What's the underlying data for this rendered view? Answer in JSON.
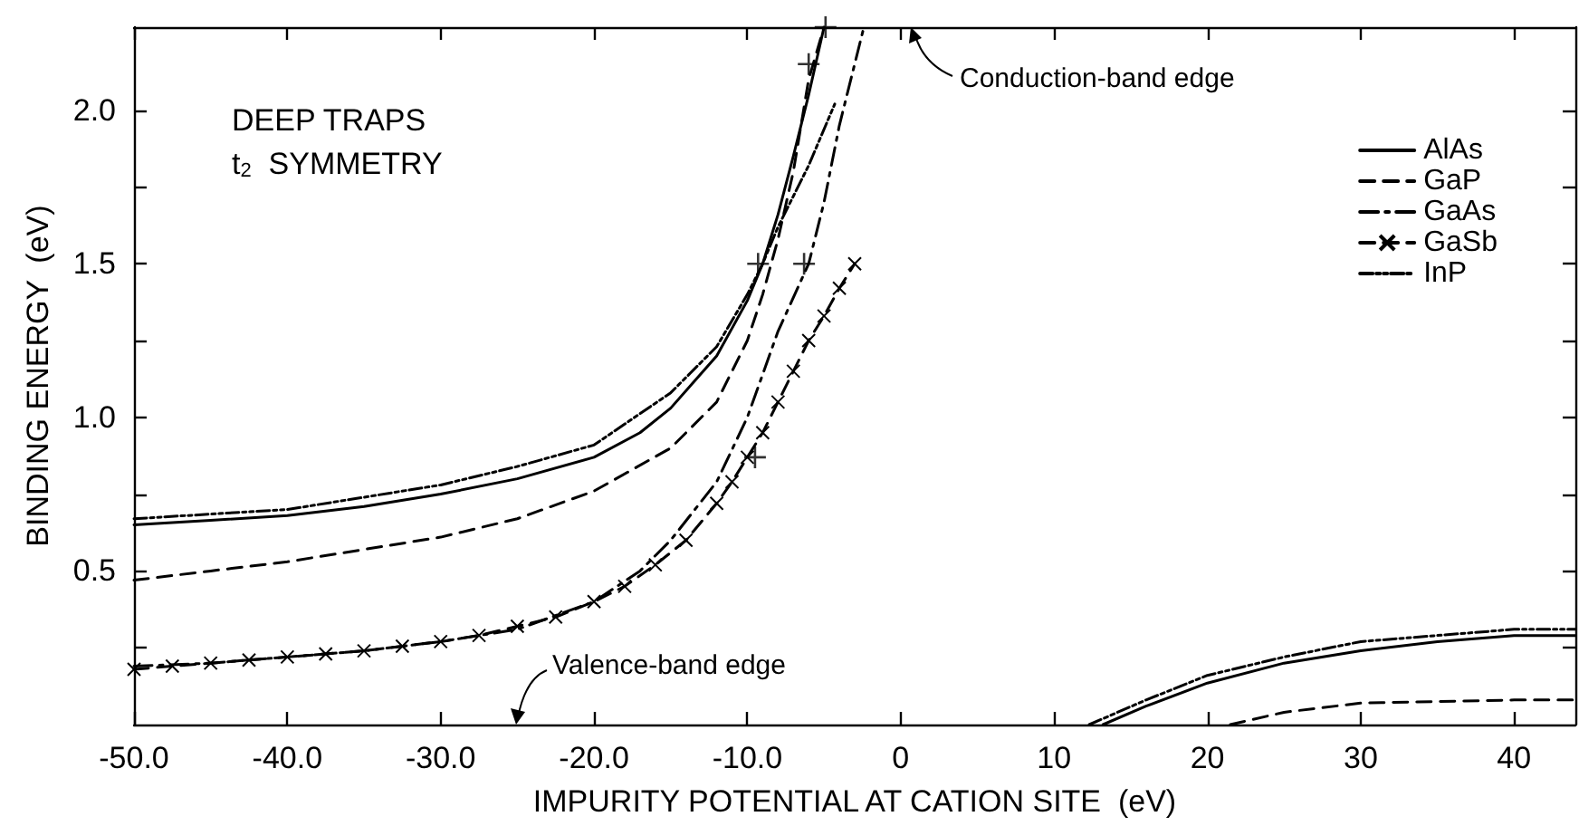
{
  "chart_data": {
    "type": "line",
    "xlabel": "IMPURITY POTENTIAL AT CATION SITE  (eV)",
    "ylabel": "BINDING ENERGY  (eV)",
    "xlim": [
      -50,
      44
    ],
    "ylim": [
      0,
      2.27
    ],
    "xticks": [
      {
        "value": -50,
        "label": "-50.0"
      },
      {
        "value": -40,
        "label": "-40.0"
      },
      {
        "value": -30,
        "label": "-30.0"
      },
      {
        "value": -20,
        "label": "-20.0"
      },
      {
        "value": -10,
        "label": "-10.0"
      },
      0,
      10,
      20,
      30,
      40
    ],
    "yticks": [
      {
        "value": 0.25,
        "label": null
      },
      {
        "value": 0.5,
        "label": "0.5"
      },
      {
        "value": 0.75,
        "label": null
      },
      {
        "value": 1,
        "label": "1.0"
      },
      {
        "value": 1.25,
        "label": null
      },
      {
        "value": 1.5,
        "label": "1.5"
      },
      {
        "value": 1.75,
        "label": null
      },
      {
        "value": 2,
        "label": "2.0"
      }
    ],
    "grid": false,
    "legend": "top right",
    "marker": "none",
    "annotations": [
      "DEEP TRAPS",
      "t$_{2}$  SYMMETRY",
      "Conduction-band edge",
      "Valence-band edge"
    ],
    "series": [
      {
        "name": "AlAs",
        "color": "#000000",
        "line_style": "solid",
        "x": [
          -50,
          -45,
          -40,
          -35,
          -30,
          -25,
          -20,
          -17,
          -15,
          -12,
          -10,
          -9,
          -8,
          -7,
          -6,
          -5
        ],
        "values": [
          0.65,
          0.665,
          0.68,
          0.71,
          0.75,
          0.8,
          0.87,
          0.95,
          1.03,
          1.2,
          1.38,
          1.5,
          1.66,
          1.85,
          2.05,
          2.27
        ]
      },
      {
        "color": "#000000",
        "line_style": "solid",
        "x": [
          13.2,
          16,
          20,
          25,
          30,
          35,
          40,
          44
        ],
        "values": [
          0,
          0.06,
          0.135,
          0.2,
          0.24,
          0.27,
          0.29,
          0.29
        ]
      },
      {
        "name": "GaP",
        "color": "#000000",
        "line_style": "dashed",
        "x": [
          -50,
          -45,
          -40,
          -35,
          -30,
          -25,
          -20,
          -15,
          -12,
          -10,
          -9,
          -8,
          -7,
          -6,
          -5
        ],
        "values": [
          0.47,
          0.5,
          0.53,
          0.57,
          0.61,
          0.67,
          0.76,
          0.9,
          1.05,
          1.25,
          1.4,
          1.58,
          1.8,
          2.1,
          2.27
        ]
      },
      {
        "color": "#000000",
        "line_style": "dashed",
        "x": [
          21.5,
          25,
          30,
          35,
          40,
          44
        ],
        "values": [
          0,
          0.04,
          0.07,
          0.075,
          0.08,
          0.08
        ]
      },
      {
        "name": "GaAs",
        "color": "#000000",
        "line_style": "dashdot",
        "x": [
          -50,
          -45,
          -40,
          -35,
          -30,
          -25,
          -20,
          -17,
          -15,
          -12,
          -10,
          -8,
          -6,
          -5,
          -4,
          -2.4
        ],
        "values": [
          0.19,
          0.2,
          0.22,
          0.24,
          0.27,
          0.31,
          0.4,
          0.5,
          0.6,
          0.79,
          1.0,
          1.28,
          1.5,
          1.7,
          1.95,
          2.27
        ]
      },
      {
        "name": "GaSb",
        "color": "#000000",
        "line_style": "dashed",
        "marker": "cross",
        "x": [
          -50,
          -47.5,
          -45,
          -42.5,
          -40,
          -37.5,
          -35,
          -32.5,
          -30,
          -27.5,
          -25,
          -22.5,
          -20,
          -18,
          -16,
          -14,
          -12,
          -11,
          -10,
          -9,
          -8,
          -7,
          -6,
          -5,
          -4,
          -3
        ],
        "values": [
          0.18,
          0.19,
          0.2,
          0.21,
          0.22,
          0.23,
          0.24,
          0.255,
          0.27,
          0.29,
          0.32,
          0.35,
          0.4,
          0.45,
          0.52,
          0.6,
          0.72,
          0.79,
          0.87,
          0.95,
          1.05,
          1.15,
          1.25,
          1.33,
          1.42,
          1.5
        ]
      },
      {
        "name": "InP",
        "color": "#000000",
        "line_style": "dashdotdot",
        "x": [
          -50,
          -45,
          -40,
          -35,
          -30,
          -25,
          -20,
          -15,
          -12,
          -10,
          -9,
          -8,
          -6,
          -4.3
        ],
        "values": [
          0.67,
          0.685,
          0.7,
          0.74,
          0.78,
          0.84,
          0.91,
          1.08,
          1.23,
          1.4,
          1.5,
          1.62,
          1.82,
          2.02
        ]
      },
      {
        "color": "#000000",
        "line_style": "dashdotdot",
        "x": [
          12.3,
          16,
          20,
          25,
          30,
          35,
          40,
          44
        ],
        "values": [
          0,
          0.08,
          0.16,
          0.22,
          0.27,
          0.29,
          0.31,
          0.31
        ]
      },
      {
        "type": "scatter",
        "color": "#000000",
        "marker": "plus",
        "x": [
          -9.3,
          -6.3,
          -9.5,
          -6,
          -4.9
        ],
        "values": [
          1.5,
          1.5,
          0.87,
          2.15,
          2.27
        ]
      }
    ]
  }
}
